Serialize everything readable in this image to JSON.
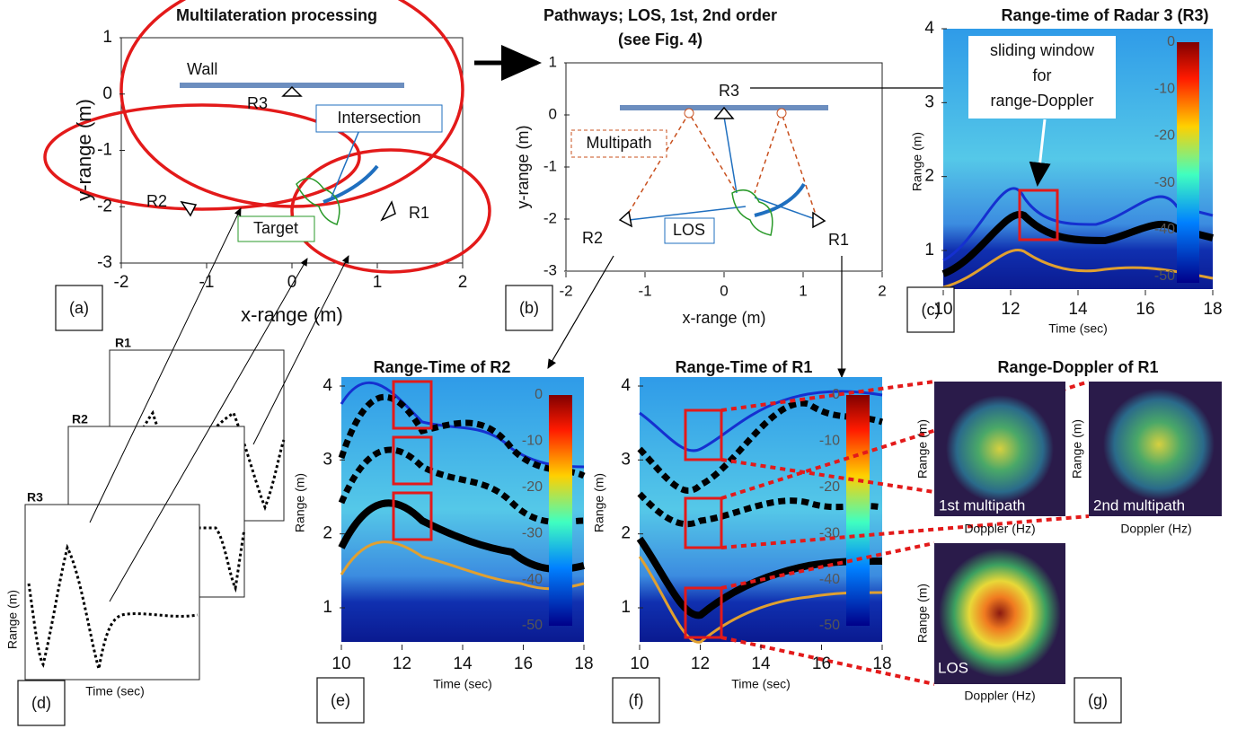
{
  "panels": {
    "a": {
      "label": "(a)",
      "title": "Multilateration processing",
      "xlabel": "x-range (m)",
      "ylabel": "y-range (m)",
      "xticks": [
        -2,
        -1,
        0,
        1,
        2
      ],
      "yticks": [
        1,
        0,
        -1,
        -2,
        -3
      ],
      "annotations": [
        "Wall",
        "R3",
        "Intersection",
        "R2",
        "Target",
        "R1"
      ]
    },
    "b": {
      "label": "(b)",
      "title": [
        "Pathways; LOS, 1st, 2nd order",
        "(see Fig. 4)"
      ],
      "xlabel": "x-range (m)",
      "ylabel": "y-range (m)",
      "xticks": [
        -2,
        -1,
        0,
        1,
        2
      ],
      "yticks": [
        1,
        0,
        -1,
        -2,
        -3
      ],
      "annotations": [
        "R3",
        "Multipath",
        "R2",
        "LOS",
        "R1"
      ]
    },
    "c": {
      "label": "(c)",
      "title": "Range-time of Radar 3 (R3)",
      "xlabel": "Time (sec)",
      "ylabel": "Range (m)",
      "xticks": [
        10,
        12,
        14,
        16,
        18
      ],
      "yticks": [
        4,
        3,
        2,
        1
      ],
      "colorbar_ticks": [
        0,
        -10,
        -20,
        -30,
        -40,
        -50
      ],
      "annotation": [
        "sliding window",
        "for",
        "range-Doppler"
      ]
    },
    "d": {
      "label": "(d)",
      "xlabel": "Time (sec)",
      "ylabel": "Range (m)",
      "cards": [
        "R1",
        "R2",
        "R3"
      ]
    },
    "e": {
      "label": "(e)",
      "title": "Range-Time of R2",
      "xlabel": "Time (sec)",
      "ylabel": "Range (m)",
      "xticks": [
        10,
        12,
        14,
        16,
        18
      ],
      "yticks": [
        4,
        3,
        2,
        1
      ],
      "colorbar_ticks": [
        0,
        -10,
        -20,
        -30,
        -40,
        -50
      ]
    },
    "f": {
      "label": "(f)",
      "title": "Range-Time of R1",
      "xlabel": "Time (sec)",
      "ylabel": "Range (m)",
      "xticks": [
        10,
        12,
        14,
        16,
        18
      ],
      "yticks": [
        4,
        3,
        2,
        1
      ],
      "colorbar_ticks": [
        0,
        -10,
        -20,
        -30,
        -40,
        -50
      ]
    },
    "g": {
      "label": "(g)",
      "title": "Range-Doppler of R1",
      "maps": [
        {
          "name": "1st multipath",
          "xlabel": "Doppler (Hz)",
          "ylabel": "Range (m)"
        },
        {
          "name": "2nd multipath",
          "xlabel": "Doppler (Hz)",
          "ylabel": "Range (m)"
        },
        {
          "name": "LOS",
          "xlabel": "Doppler (Hz)",
          "ylabel": "Range (m)"
        }
      ]
    }
  }
}
